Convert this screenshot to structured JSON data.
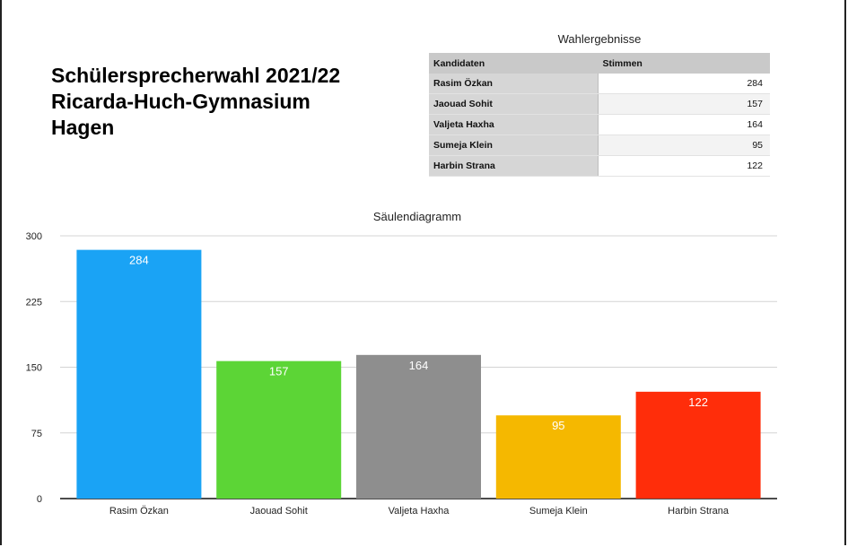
{
  "page": {
    "title_lines": [
      "Schülersprecherwahl 2021/22",
      "Ricarda-Huch-Gymnasium",
      "Hagen"
    ]
  },
  "table": {
    "title": "Wahlergebnisse",
    "headers": [
      "Kandidaten",
      "Stimmen"
    ],
    "rows": [
      {
        "name": "Rasim Özkan",
        "votes": "284"
      },
      {
        "name": "Jaouad Sohit",
        "votes": "157"
      },
      {
        "name": "Valjeta Haxha",
        "votes": "164"
      },
      {
        "name": "Sumeja Klein",
        "votes": "95"
      },
      {
        "name": "Harbin Strana",
        "votes": "122"
      }
    ]
  },
  "chart_data": {
    "type": "bar",
    "title": "Säulendiagramm",
    "categories": [
      "Rasim Özkan",
      "Jaouad Sohit",
      "Valjeta Haxha",
      "Sumeja Klein",
      "Harbin Strana"
    ],
    "values": [
      284,
      157,
      164,
      95,
      122
    ],
    "colors": [
      "#1aa3f5",
      "#5cd536",
      "#8e8e8e",
      "#f5b800",
      "#ff2d0a"
    ],
    "data_labels": [
      "284",
      "157",
      "164",
      "95",
      "122"
    ],
    "ylim": [
      0,
      300
    ],
    "yticks": [
      "0",
      "75",
      "150",
      "225",
      "300"
    ],
    "grid": true,
    "xlabel": "",
    "ylabel": ""
  }
}
